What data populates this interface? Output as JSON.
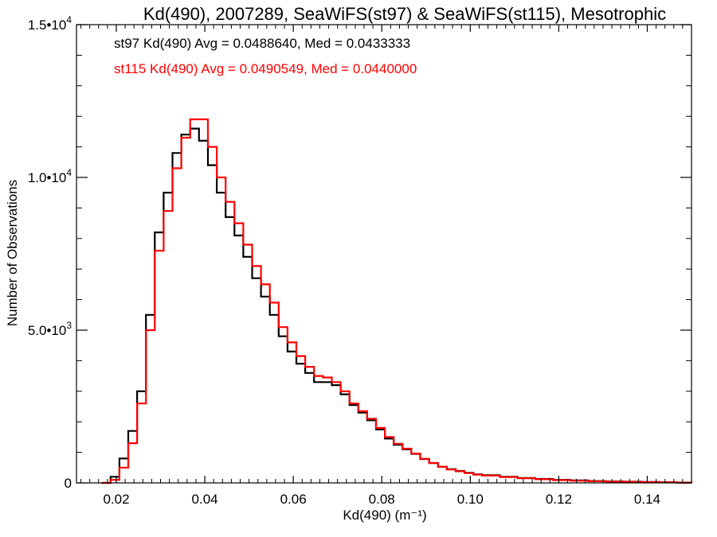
{
  "chart_data": {
    "type": "line",
    "title": "Kd(490), 2007289, SeaWiFS(st97) & SeaWiFS(st115), Mesotrophic",
    "xlabel": "Kd(490) (m⁻¹)",
    "ylabel": "Number of Observations",
    "xlim": [
      0.011,
      0.15
    ],
    "ylim": [
      0,
      15000
    ],
    "x_ticks": [
      {
        "value": 0.02,
        "label": "0.02"
      },
      {
        "value": 0.04,
        "label": "0.04"
      },
      {
        "value": 0.06,
        "label": "0.06"
      },
      {
        "value": 0.08,
        "label": "0.08"
      },
      {
        "value": 0.1,
        "label": "0.10"
      },
      {
        "value": 0.12,
        "label": "0.12"
      },
      {
        "value": 0.14,
        "label": "0.14"
      }
    ],
    "y_ticks": [
      {
        "value": 0,
        "label": "0",
        "exp": ""
      },
      {
        "value": 5000,
        "label": "5.0•10",
        "exp": "3"
      },
      {
        "value": 10000,
        "label": "1.0•10",
        "exp": "4"
      },
      {
        "value": 15000,
        "label": "1.5•10",
        "exp": "4"
      }
    ],
    "series": [
      {
        "name": "st97",
        "color": "#000000",
        "annotation": "st97 Kd(490) Avg = 0.0488640, Med = 0.0433333",
        "x": [
          0.0167,
          0.0187,
          0.0207,
          0.0227,
          0.0247,
          0.0267,
          0.0287,
          0.0307,
          0.0327,
          0.0347,
          0.0367,
          0.0387,
          0.0407,
          0.0427,
          0.0447,
          0.0467,
          0.0487,
          0.0507,
          0.0527,
          0.0547,
          0.0567,
          0.0587,
          0.0607,
          0.0627,
          0.0647,
          0.0667,
          0.0687,
          0.0707,
          0.0727,
          0.0747,
          0.0767,
          0.0787,
          0.0807,
          0.0827,
          0.0847,
          0.0867,
          0.0887,
          0.0907,
          0.0927,
          0.0947,
          0.0967,
          0.0987,
          0.1007,
          0.1027,
          0.1067,
          0.1107,
          0.1147,
          0.1187,
          0.1227,
          0.1267,
          0.1307,
          0.1347,
          0.1387,
          0.1427,
          0.1467,
          0.15
        ],
        "y": [
          0,
          200,
          800,
          1700,
          3000,
          5500,
          8200,
          9500,
          10800,
          11400,
          11600,
          11200,
          10400,
          9500,
          8700,
          8100,
          7400,
          6700,
          6100,
          5500,
          4800,
          4300,
          3900,
          3600,
          3300,
          3300,
          3200,
          2900,
          2550,
          2300,
          2050,
          1750,
          1450,
          1250,
          1100,
          950,
          780,
          650,
          530,
          450,
          390,
          330,
          280,
          250,
          200,
          160,
          130,
          100,
          80,
          60,
          50,
          40,
          30,
          20,
          10,
          0
        ]
      },
      {
        "name": "st115",
        "color": "#ff0000",
        "annotation": "st115 Kd(490) Avg = 0.0490549, Med = 0.0440000",
        "x": [
          0.0167,
          0.0187,
          0.0207,
          0.0227,
          0.0247,
          0.0267,
          0.0287,
          0.0307,
          0.0327,
          0.0347,
          0.0367,
          0.0387,
          0.0407,
          0.0427,
          0.0447,
          0.0467,
          0.0487,
          0.0507,
          0.0527,
          0.0547,
          0.0567,
          0.0587,
          0.0607,
          0.0627,
          0.0647,
          0.0667,
          0.0687,
          0.0707,
          0.0727,
          0.0747,
          0.0767,
          0.0787,
          0.0807,
          0.0827,
          0.0847,
          0.0867,
          0.0887,
          0.0907,
          0.0927,
          0.0947,
          0.0967,
          0.0987,
          0.1007,
          0.1027,
          0.1067,
          0.1107,
          0.1147,
          0.1187,
          0.1227,
          0.1267,
          0.1307,
          0.1347,
          0.1387,
          0.1427,
          0.1467,
          0.15
        ],
        "y": [
          0,
          100,
          500,
          1300,
          2600,
          5000,
          7600,
          8900,
          10300,
          11300,
          11900,
          11900,
          11000,
          10000,
          9200,
          8500,
          7800,
          7100,
          6500,
          5900,
          5100,
          4600,
          4150,
          3800,
          3500,
          3450,
          3300,
          3000,
          2600,
          2350,
          2100,
          1800,
          1500,
          1280,
          1120,
          960,
          790,
          650,
          530,
          440,
          380,
          320,
          270,
          240,
          190,
          150,
          120,
          90,
          70,
          55,
          45,
          35,
          25,
          15,
          8,
          0
        ]
      }
    ]
  }
}
